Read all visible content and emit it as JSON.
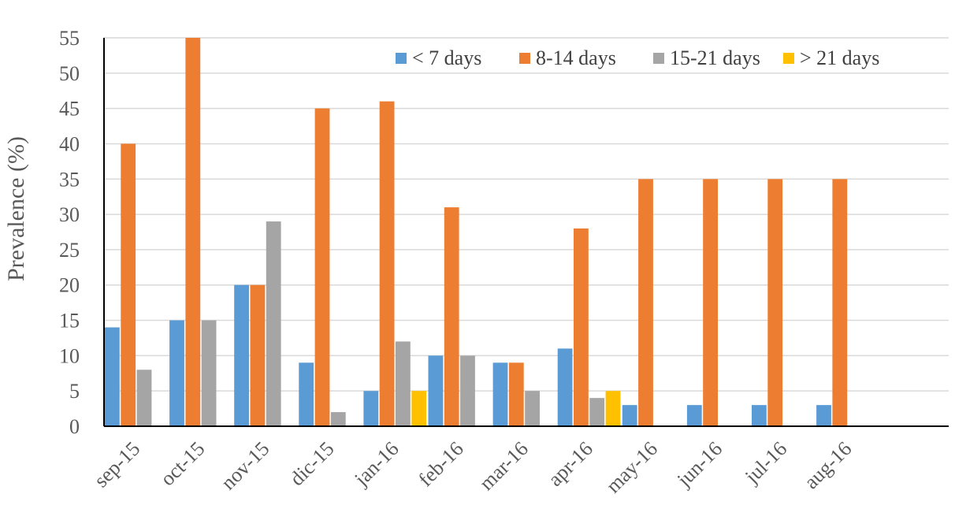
{
  "chart_data": {
    "type": "bar",
    "title": "",
    "xlabel": "",
    "ylabel": "Prevalence (%)",
    "ylim": [
      0,
      55
    ],
    "yticks": [
      0,
      5,
      10,
      15,
      20,
      25,
      30,
      35,
      40,
      45,
      50,
      55
    ],
    "grid": true,
    "legend_position": "top-right",
    "categories": [
      "sep-15",
      "oct-15",
      "nov-15",
      "dic-15",
      "jan-16",
      "feb-16",
      "mar-16",
      "apr-16",
      "may-16",
      "jun-16",
      "jul-16",
      "aug-16"
    ],
    "series": [
      {
        "name": "< 7 days",
        "color": "#5b9bd5",
        "values": [
          14,
          15,
          20,
          9,
          5,
          10,
          9,
          11,
          3,
          3,
          3,
          3
        ]
      },
      {
        "name": "8-14 days",
        "color": "#ed7d31",
        "values": [
          40,
          55,
          20,
          45,
          46,
          31,
          9,
          28,
          35,
          35,
          35,
          35
        ]
      },
      {
        "name": "15-21 days",
        "color": "#a5a5a5",
        "values": [
          8,
          15,
          29,
          2,
          12,
          10,
          5,
          4,
          0,
          0,
          0,
          0
        ]
      },
      {
        "name": "> 21 days",
        "color": "#ffc000",
        "values": [
          0,
          0,
          0,
          0,
          5,
          0,
          0,
          5,
          0,
          0,
          0,
          0
        ]
      }
    ]
  }
}
